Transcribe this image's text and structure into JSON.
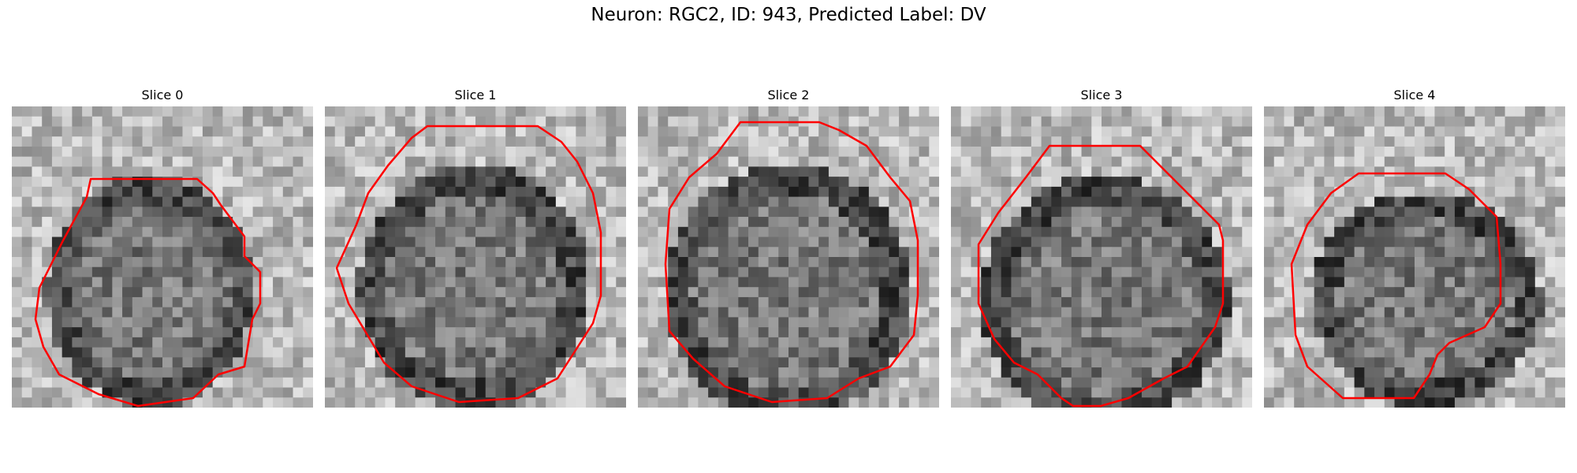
{
  "figure": {
    "title": "Neuron: RGC2, ID: 943, Predicted Label: DV"
  },
  "panels": [
    {
      "title": "Slice 0"
    },
    {
      "title": "Slice 1"
    },
    {
      "title": "Slice 2"
    },
    {
      "title": "Slice 3"
    },
    {
      "title": "Slice 4"
    }
  ],
  "colors": {
    "contour": "#ff0000",
    "background": "#ffffff"
  }
}
